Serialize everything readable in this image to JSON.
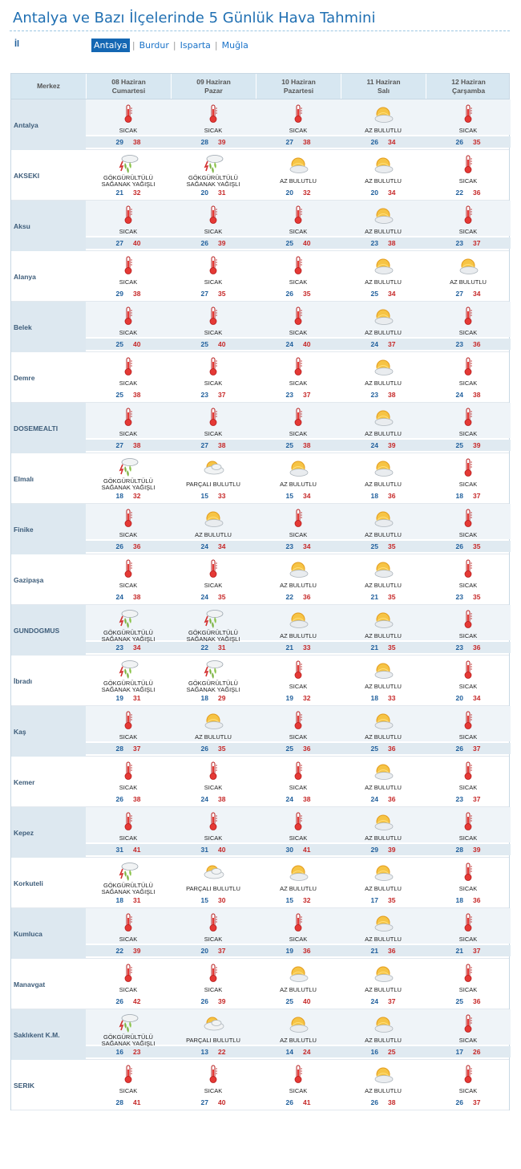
{
  "page_title": "Antalya ve Bazı İlçelerinde 5 Günlük Hava Tahmini",
  "il_label": "İl",
  "provinces": [
    {
      "name": "Antalya",
      "active": true
    },
    {
      "name": "Burdur",
      "active": false
    },
    {
      "name": "Isparta",
      "active": false
    },
    {
      "name": "Muğla",
      "active": false
    }
  ],
  "header": {
    "center_label": "Merkez",
    "days": [
      {
        "date": "08 Haziran",
        "weekday": "Cumartesi"
      },
      {
        "date": "09 Haziran",
        "weekday": "Pazar"
      },
      {
        "date": "10 Haziran",
        "weekday": "Pazartesi"
      },
      {
        "date": "11 Haziran",
        "weekday": "Salı"
      },
      {
        "date": "12 Haziran",
        "weekday": "Çarşamba"
      }
    ]
  },
  "conditions": {
    "hot": {
      "label": "SICAK",
      "icon": "thermometer-icon"
    },
    "partly": {
      "label": "AZ BULUTLU",
      "icon": "sun-cloud-icon"
    },
    "cloudy": {
      "label": "PARÇALI BULUTLU",
      "icon": "cloud-sun-icon"
    },
    "storm": {
      "label": "GÖKGÜRÜLTÜLÜ SAĞANAK YAĞIŞLI",
      "icon": "thunderstorm-icon"
    }
  },
  "colors": {
    "min_temp": "#1f5f9c",
    "max_temp": "#c62828",
    "accent": "#1467b3"
  },
  "rows": [
    {
      "city": "Antalya",
      "days": [
        [
          "hot",
          "29",
          "38"
        ],
        [
          "hot",
          "28",
          "39"
        ],
        [
          "hot",
          "27",
          "38"
        ],
        [
          "partly",
          "26",
          "34"
        ],
        [
          "hot",
          "26",
          "35"
        ]
      ]
    },
    {
      "city": "AKSEKI",
      "days": [
        [
          "storm",
          "21",
          "32"
        ],
        [
          "storm",
          "20",
          "31"
        ],
        [
          "partly",
          "20",
          "32"
        ],
        [
          "partly",
          "20",
          "34"
        ],
        [
          "hot",
          "22",
          "36"
        ]
      ]
    },
    {
      "city": "Aksu",
      "days": [
        [
          "hot",
          "27",
          "40"
        ],
        [
          "hot",
          "26",
          "39"
        ],
        [
          "hot",
          "25",
          "40"
        ],
        [
          "partly",
          "23",
          "38"
        ],
        [
          "hot",
          "23",
          "37"
        ]
      ]
    },
    {
      "city": "Alanya",
      "days": [
        [
          "hot",
          "29",
          "38"
        ],
        [
          "hot",
          "27",
          "35"
        ],
        [
          "hot",
          "26",
          "35"
        ],
        [
          "partly",
          "25",
          "34"
        ],
        [
          "partly",
          "27",
          "34"
        ]
      ]
    },
    {
      "city": "Belek",
      "days": [
        [
          "hot",
          "25",
          "40"
        ],
        [
          "hot",
          "25",
          "40"
        ],
        [
          "hot",
          "24",
          "40"
        ],
        [
          "partly",
          "24",
          "37"
        ],
        [
          "hot",
          "23",
          "36"
        ]
      ]
    },
    {
      "city": "Demre",
      "days": [
        [
          "hot",
          "25",
          "38"
        ],
        [
          "hot",
          "23",
          "37"
        ],
        [
          "hot",
          "23",
          "37"
        ],
        [
          "partly",
          "23",
          "38"
        ],
        [
          "hot",
          "24",
          "38"
        ]
      ]
    },
    {
      "city": "DOSEMEALTI",
      "days": [
        [
          "hot",
          "27",
          "38"
        ],
        [
          "hot",
          "27",
          "38"
        ],
        [
          "hot",
          "25",
          "38"
        ],
        [
          "partly",
          "24",
          "39"
        ],
        [
          "hot",
          "25",
          "39"
        ]
      ]
    },
    {
      "city": "Elmalı",
      "days": [
        [
          "storm",
          "18",
          "32"
        ],
        [
          "cloudy",
          "15",
          "33"
        ],
        [
          "partly",
          "15",
          "34"
        ],
        [
          "partly",
          "18",
          "36"
        ],
        [
          "hot",
          "18",
          "37"
        ]
      ]
    },
    {
      "city": "Finike",
      "days": [
        [
          "hot",
          "26",
          "36"
        ],
        [
          "partly",
          "24",
          "34"
        ],
        [
          "hot",
          "23",
          "34"
        ],
        [
          "partly",
          "25",
          "35"
        ],
        [
          "hot",
          "26",
          "35"
        ]
      ]
    },
    {
      "city": "Gazipaşa",
      "days": [
        [
          "hot",
          "24",
          "38"
        ],
        [
          "hot",
          "24",
          "35"
        ],
        [
          "partly",
          "22",
          "36"
        ],
        [
          "partly",
          "21",
          "35"
        ],
        [
          "hot",
          "23",
          "35"
        ]
      ]
    },
    {
      "city": "GUNDOGMUS",
      "days": [
        [
          "storm",
          "23",
          "34"
        ],
        [
          "storm",
          "22",
          "31"
        ],
        [
          "partly",
          "21",
          "33"
        ],
        [
          "partly",
          "21",
          "35"
        ],
        [
          "hot",
          "23",
          "36"
        ]
      ]
    },
    {
      "city": "İbradı",
      "days": [
        [
          "storm",
          "19",
          "31"
        ],
        [
          "storm",
          "18",
          "29"
        ],
        [
          "hot",
          "19",
          "32"
        ],
        [
          "partly",
          "18",
          "33"
        ],
        [
          "hot",
          "20",
          "34"
        ]
      ]
    },
    {
      "city": "Kaş",
      "days": [
        [
          "hot",
          "28",
          "37"
        ],
        [
          "partly",
          "26",
          "35"
        ],
        [
          "hot",
          "25",
          "36"
        ],
        [
          "partly",
          "25",
          "36"
        ],
        [
          "hot",
          "26",
          "37"
        ]
      ]
    },
    {
      "city": "Kemer",
      "days": [
        [
          "hot",
          "26",
          "38"
        ],
        [
          "hot",
          "24",
          "38"
        ],
        [
          "hot",
          "24",
          "38"
        ],
        [
          "partly",
          "24",
          "36"
        ],
        [
          "hot",
          "23",
          "37"
        ]
      ]
    },
    {
      "city": "Kepez",
      "days": [
        [
          "hot",
          "31",
          "41"
        ],
        [
          "hot",
          "31",
          "40"
        ],
        [
          "hot",
          "30",
          "41"
        ],
        [
          "partly",
          "29",
          "39"
        ],
        [
          "hot",
          "28",
          "39"
        ]
      ]
    },
    {
      "city": "Korkuteli",
      "days": [
        [
          "storm",
          "18",
          "31"
        ],
        [
          "cloudy",
          "15",
          "30"
        ],
        [
          "partly",
          "15",
          "32"
        ],
        [
          "partly",
          "17",
          "35"
        ],
        [
          "hot",
          "18",
          "36"
        ]
      ]
    },
    {
      "city": "Kumluca",
      "days": [
        [
          "hot",
          "22",
          "39"
        ],
        [
          "hot",
          "20",
          "37"
        ],
        [
          "hot",
          "19",
          "36"
        ],
        [
          "partly",
          "21",
          "36"
        ],
        [
          "hot",
          "21",
          "37"
        ]
      ]
    },
    {
      "city": "Manavgat",
      "days": [
        [
          "hot",
          "26",
          "42"
        ],
        [
          "hot",
          "26",
          "39"
        ],
        [
          "partly",
          "25",
          "40"
        ],
        [
          "partly",
          "24",
          "37"
        ],
        [
          "hot",
          "25",
          "36"
        ]
      ]
    },
    {
      "city": "Saklıkent K.M.",
      "days": [
        [
          "storm",
          "16",
          "23"
        ],
        [
          "cloudy",
          "13",
          "22"
        ],
        [
          "partly",
          "14",
          "24"
        ],
        [
          "partly",
          "16",
          "25"
        ],
        [
          "hot",
          "17",
          "26"
        ]
      ]
    },
    {
      "city": "SERIK",
      "days": [
        [
          "hot",
          "28",
          "41"
        ],
        [
          "hot",
          "27",
          "40"
        ],
        [
          "hot",
          "26",
          "41"
        ],
        [
          "partly",
          "26",
          "38"
        ],
        [
          "hot",
          "26",
          "37"
        ]
      ]
    }
  ]
}
